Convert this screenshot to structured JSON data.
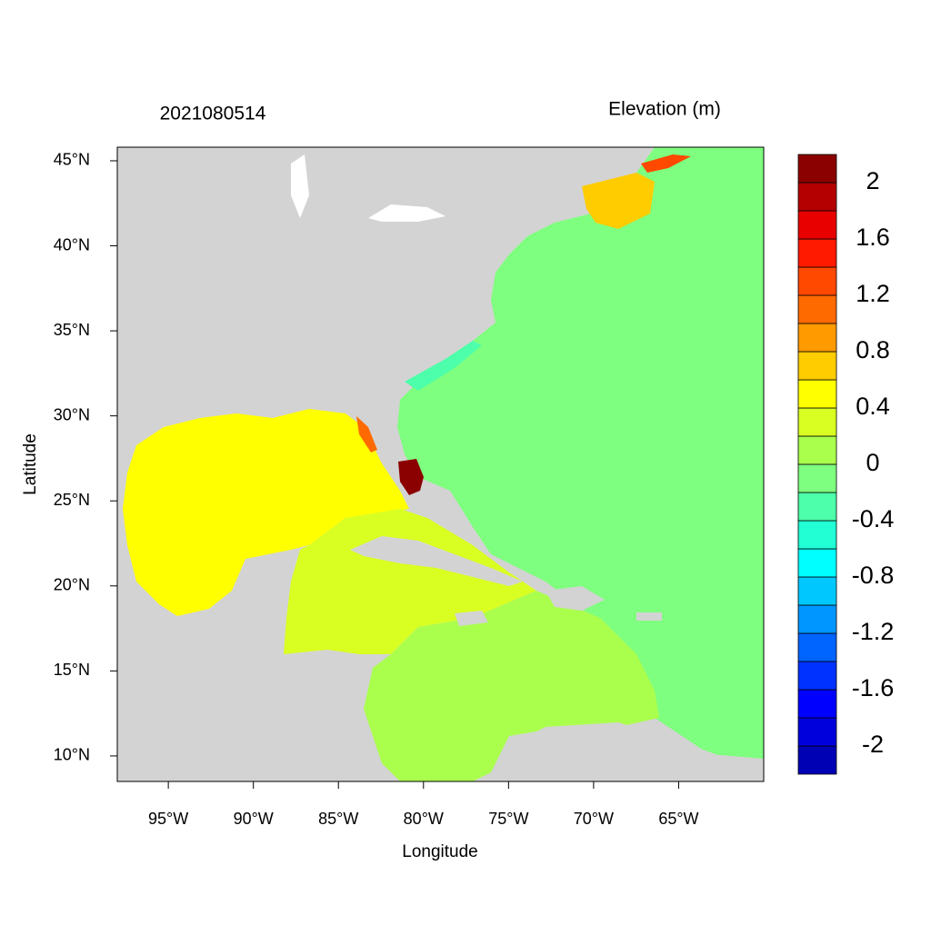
{
  "chart_data": {
    "type": "map",
    "title": "2021080514",
    "legend_title": "Elevation (m)",
    "x_label": "Longitude",
    "y_label": "Latitude",
    "xlim": [
      -98,
      -60
    ],
    "ylim": [
      8.5,
      45.8
    ],
    "xticks": [
      {
        "value": -95,
        "label": "95°W"
      },
      {
        "value": -90,
        "label": "90°W"
      },
      {
        "value": -85,
        "label": "85°W"
      },
      {
        "value": -80,
        "label": "80°W"
      },
      {
        "value": -75,
        "label": "75°W"
      },
      {
        "value": -70,
        "label": "70°W"
      },
      {
        "value": -65,
        "label": "65°W"
      }
    ],
    "yticks": [
      {
        "value": 10,
        "label": "10°N"
      },
      {
        "value": 15,
        "label": "15°N"
      },
      {
        "value": 20,
        "label": "20°N"
      },
      {
        "value": 25,
        "label": "25°N"
      },
      {
        "value": 30,
        "label": "30°N"
      },
      {
        "value": 35,
        "label": "35°N"
      },
      {
        "value": 40,
        "label": "40°N"
      },
      {
        "value": 45,
        "label": "45°N"
      }
    ],
    "land_color": "#d3d3d3",
    "colorbar": {
      "clim": [
        -2.2,
        2.2
      ],
      "ticks": [
        -2,
        -1.6,
        -1.2,
        -0.8,
        -0.4,
        0,
        0.4,
        0.8,
        1.2,
        1.6,
        2
      ],
      "colors": [
        "#0000b4",
        "#0000dc",
        "#0000ff",
        "#0032ff",
        "#0064ff",
        "#0096ff",
        "#00c8ff",
        "#00ffff",
        "#22ffd5",
        "#4dffaa",
        "#7fff7f",
        "#aaff4d",
        "#d9ff22",
        "#ffff00",
        "#ffcc00",
        "#ff9a00",
        "#ff6a00",
        "#ff4800",
        "#ff1a00",
        "#e80000",
        "#b40000",
        "#8b0000"
      ]
    }
  }
}
